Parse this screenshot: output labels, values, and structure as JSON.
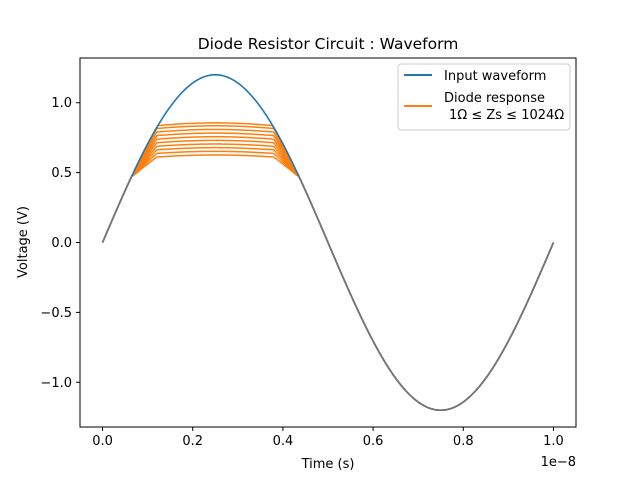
{
  "chart_data": {
    "type": "line",
    "title": "Diode Resistor Circuit : Waveform",
    "xlabel": "Time (s)",
    "ylabel": "Voltage (V)",
    "x_offset_label": "1e−8",
    "x_scale": 1e-08,
    "xlim": [
      -0.05,
      1.05
    ],
    "ylim": [
      -1.32,
      1.32
    ],
    "xticks": [
      0.0,
      0.2,
      0.4,
      0.6,
      0.8,
      1.0
    ],
    "xtick_labels": [
      "0.0",
      "0.2",
      "0.4",
      "0.6",
      "0.8",
      "1.0"
    ],
    "yticks": [
      -1.0,
      -0.5,
      0.0,
      0.5,
      1.0
    ],
    "ytick_labels": [
      "−1.0",
      "−0.5",
      "0.0",
      "0.5",
      "1.0"
    ],
    "grid": false,
    "legend_position": "top-right",
    "series": [
      {
        "name": "Input waveform",
        "kind": "input",
        "color": "#1f77b4",
        "amplitude": 1.2,
        "x": [
          0.0,
          0.05,
          0.1,
          0.15,
          0.2,
          0.25,
          0.3,
          0.35,
          0.4,
          0.45,
          0.5,
          0.55,
          0.6,
          0.65,
          0.7,
          0.75,
          0.8,
          0.85,
          0.9,
          0.95,
          1.0
        ],
        "y": [
          0.0,
          0.371,
          0.705,
          0.971,
          1.141,
          1.2,
          1.141,
          0.971,
          0.705,
          0.371,
          0.0,
          -0.371,
          -0.705,
          -0.971,
          -1.141,
          -1.2,
          -1.141,
          -0.971,
          -0.705,
          -0.371,
          0.0
        ]
      },
      {
        "name": "Diode response\n 1Ω ≤ Zs ≤ 1024Ω",
        "legend_lines": [
          "Diode response",
          "1Ω ≤ Zs ≤ 1024Ω"
        ],
        "kind": "clipped_family",
        "color": "#ff7f0e",
        "clip_levels": [
          0.6,
          0.625,
          0.65,
          0.675,
          0.7,
          0.725,
          0.75,
          0.775,
          0.8,
          0.82
        ],
        "clip_onset_x": 0.065,
        "clip_end_x": 0.435,
        "clip_onset_y": 0.47
      }
    ]
  }
}
